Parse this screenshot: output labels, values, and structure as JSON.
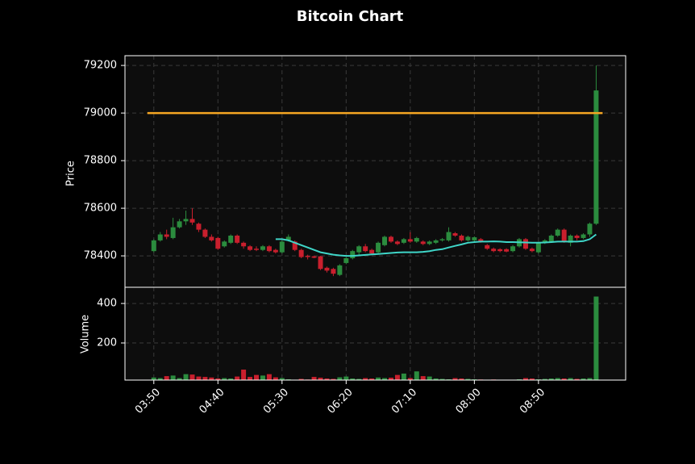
{
  "chart_data": {
    "type": "candlestick",
    "title": "Bitcoin Chart",
    "ylabel": "Price",
    "volume_label": "Volume",
    "categories": [
      "03:50",
      null,
      null,
      null,
      null,
      null,
      null,
      null,
      null,
      null,
      "04:40",
      null,
      null,
      null,
      null,
      null,
      null,
      null,
      null,
      null,
      "05:30",
      null,
      null,
      null,
      null,
      null,
      null,
      null,
      null,
      null,
      "06:20",
      null,
      null,
      null,
      null,
      null,
      null,
      null,
      null,
      null,
      "07:10",
      null,
      null,
      null,
      null,
      null,
      null,
      null,
      null,
      null,
      "08:00",
      null,
      null,
      null,
      null,
      null,
      null,
      null,
      null,
      null,
      "08:50",
      null,
      null,
      null,
      null,
      null,
      null,
      null,
      null,
      null
    ],
    "open": [
      78420,
      78465,
      78490,
      78475,
      78520,
      78545,
      78555,
      78535,
      78510,
      78480,
      78475,
      78440,
      78455,
      78485,
      78455,
      78440,
      78430,
      78425,
      78440,
      78425,
      78415,
      78465,
      78460,
      78425,
      78400,
      78398,
      78398,
      78350,
      78345,
      78320,
      78370,
      78390,
      78415,
      78440,
      78425,
      78415,
      78445,
      78480,
      78460,
      78455,
      78470,
      78460,
      78460,
      78450,
      78455,
      78465,
      78465,
      78495,
      78485,
      78465,
      78465,
      78470,
      78445,
      78430,
      78428,
      78428,
      78420,
      78440,
      78470,
      78430,
      78415,
      78455,
      78460,
      78485,
      78510,
      78455,
      78485,
      78475,
      78490,
      78535
    ],
    "high": [
      78470,
      78500,
      78510,
      78560,
      78555,
      78590,
      78600,
      78540,
      78515,
      78490,
      78480,
      78465,
      78490,
      78490,
      78460,
      78445,
      78440,
      78445,
      78445,
      78430,
      78465,
      78490,
      78465,
      78430,
      78405,
      78400,
      78400,
      78355,
      78350,
      78365,
      78395,
      78425,
      78445,
      78450,
      78430,
      78460,
      78485,
      78485,
      78465,
      78475,
      78500,
      78480,
      78465,
      78465,
      78470,
      78475,
      78520,
      78500,
      78490,
      78485,
      78482,
      78475,
      78450,
      78435,
      78432,
      78432,
      78445,
      78475,
      78475,
      78435,
      78460,
      78470,
      78490,
      78515,
      78515,
      78490,
      78490,
      78495,
      78540,
      79200
    ],
    "low": [
      78415,
      78460,
      78470,
      78470,
      78515,
      78530,
      78530,
      78500,
      78475,
      78460,
      78425,
      78435,
      78450,
      78450,
      78430,
      78420,
      78420,
      78420,
      78415,
      78410,
      78410,
      78460,
      78420,
      78390,
      78385,
      78390,
      78340,
      78330,
      78315,
      78315,
      78365,
      78385,
      78405,
      78415,
      78405,
      78410,
      78440,
      78455,
      78445,
      78450,
      78455,
      78455,
      78445,
      78445,
      78450,
      78460,
      78460,
      78480,
      78460,
      78460,
      78460,
      78455,
      78425,
      78415,
      78415,
      78415,
      78415,
      78435,
      78425,
      78415,
      78410,
      78450,
      78455,
      78480,
      78455,
      78440,
      78465,
      78470,
      78480,
      78530
    ],
    "close": [
      78465,
      78490,
      78480,
      78520,
      78545,
      78555,
      78540,
      78510,
      78480,
      78465,
      78430,
      78460,
      78485,
      78455,
      78440,
      78425,
      78425,
      78440,
      78420,
      78415,
      78460,
      78480,
      78425,
      78395,
      78395,
      78392,
      78345,
      78338,
      78325,
      78360,
      78390,
      78420,
      78440,
      78420,
      78410,
      78455,
      78480,
      78460,
      78450,
      78470,
      78460,
      78475,
      78450,
      78460,
      78465,
      78470,
      78500,
      78485,
      78465,
      78480,
      78478,
      78460,
      78430,
      78420,
      78420,
      78418,
      78440,
      78470,
      78430,
      78420,
      78455,
      78465,
      78485,
      78510,
      78460,
      78485,
      78475,
      78490,
      78535,
      79095
    ],
    "volume": [
      25,
      22,
      32,
      35,
      22,
      42,
      40,
      30,
      28,
      25,
      20,
      22,
      20,
      30,
      65,
      28,
      38,
      35,
      42,
      26,
      22,
      16,
      14,
      18,
      15,
      28,
      24,
      20,
      18,
      26,
      30,
      20,
      18,
      22,
      20,
      25,
      22,
      24,
      38,
      45,
      22,
      56,
      32,
      30,
      20,
      18,
      16,
      22,
      20,
      18,
      16,
      15,
      14,
      15,
      14,
      14,
      14,
      16,
      22,
      20,
      16,
      18,
      20,
      22,
      20,
      22,
      18,
      20,
      22,
      435
    ],
    "up_color": "#2b8c3e",
    "down_color": "#c91f2d",
    "mav": {
      "color": "#3fd6c8",
      "values": [
        null,
        null,
        null,
        null,
        null,
        null,
        null,
        null,
        null,
        null,
        null,
        null,
        null,
        null,
        null,
        null,
        null,
        null,
        null,
        78470,
        78470,
        78465,
        78455,
        78445,
        78435,
        78425,
        78415,
        78410,
        78405,
        78402,
        78400,
        78400,
        78402,
        78404,
        78406,
        78408,
        78410,
        78412,
        78414,
        78415,
        78415,
        78415,
        78417,
        78420,
        78425,
        78428,
        78435,
        78442,
        78448,
        78455,
        78458,
        78460,
        78460,
        78461,
        78460,
        78458,
        78458,
        78457,
        78456,
        78455,
        78455,
        78456,
        78458,
        78460,
        78460,
        78460,
        78460,
        78462,
        78470,
        78490
      ]
    },
    "hline": {
      "value": 79000,
      "color": "#f5a623"
    },
    "xlim": [
      -4.5,
      73.6
    ],
    "ylim": [
      78268,
      79241
    ],
    "yticks": [
      78400,
      78600,
      78800,
      79000,
      79200
    ],
    "volume_ylim": [
      12,
      482
    ],
    "volume_yticks": [
      200,
      400
    ],
    "grid": true
  }
}
